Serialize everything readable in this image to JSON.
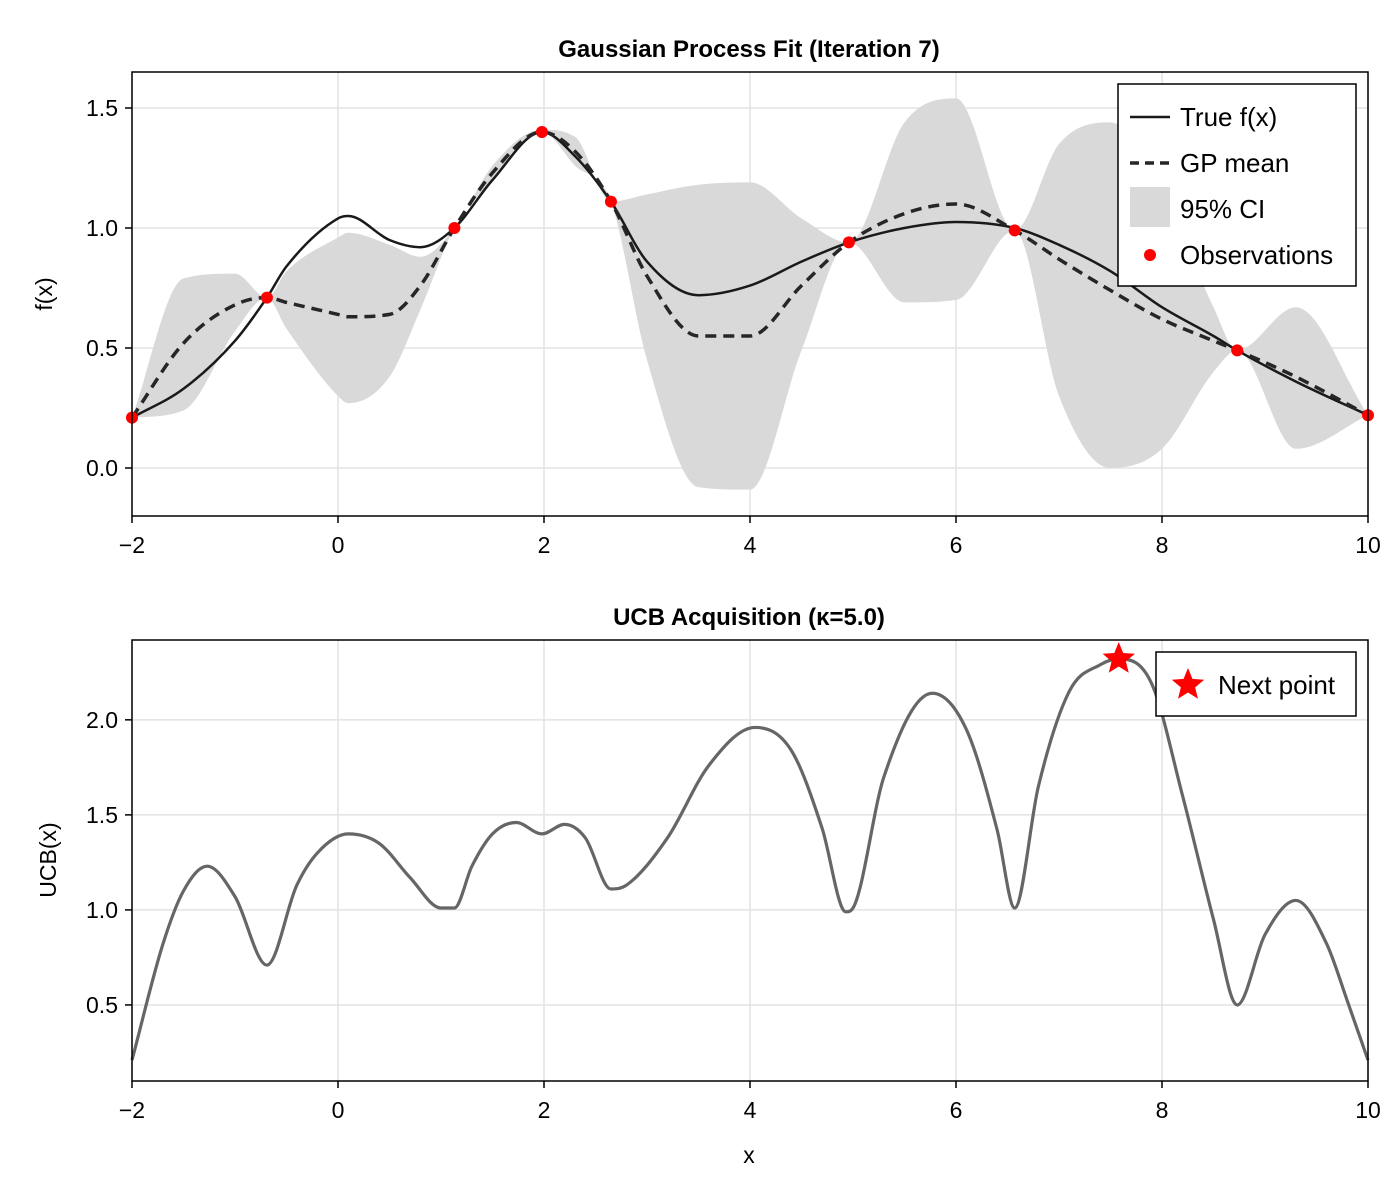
{
  "chart_data": [
    {
      "type": "line",
      "title": "Gaussian Process Fit (Iteration 7)",
      "xlabel": "",
      "ylabel": "f(x)",
      "xlim": [
        -2,
        10
      ],
      "ylim": [
        -0.2,
        1.65
      ],
      "xticks": [
        -2,
        0,
        2,
        4,
        6,
        8,
        10
      ],
      "xtick_labels": [
        "−2",
        "0",
        "2",
        "4",
        "6",
        "8",
        "10"
      ],
      "yticks": [
        0.0,
        0.5,
        1.0,
        1.5
      ],
      "ytick_labels": [
        "0.0",
        "0.5",
        "1.0",
        "1.5"
      ],
      "grid": true,
      "legend_position": "top-right",
      "legend": [
        "True f(x)",
        "GP mean",
        "95% CI",
        "Observations"
      ],
      "x": [
        -2,
        -1.5,
        -1,
        -0.69,
        -0.5,
        0,
        0.1,
        0.5,
        0.8,
        1.13,
        1.5,
        1.98,
        2.3,
        2.65,
        3,
        3.5,
        4,
        4.5,
        4.96,
        5.5,
        6,
        6.57,
        7,
        7.5,
        8,
        8.5,
        8.73,
        9.3,
        10
      ],
      "series": [
        {
          "name": "True f(x)",
          "style": "solid",
          "color": "#1a1a1a",
          "values": [
            0.21,
            0.33,
            0.53,
            0.71,
            0.84,
            1.04,
            1.05,
            0.95,
            0.92,
            1.0,
            1.2,
            1.4,
            1.3,
            1.11,
            0.86,
            0.72,
            0.76,
            0.86,
            0.94,
            1.0,
            1.025,
            1.0,
            0.93,
            0.82,
            0.67,
            0.55,
            0.49,
            0.36,
            0.22
          ]
        },
        {
          "name": "GP mean",
          "style": "dashed",
          "color": "#262626",
          "values": [
            0.21,
            0.52,
            0.68,
            0.71,
            0.69,
            0.64,
            0.63,
            0.64,
            0.76,
            1.0,
            1.23,
            1.4,
            1.32,
            1.11,
            0.8,
            0.55,
            0.55,
            0.76,
            0.94,
            1.06,
            1.1,
            0.99,
            0.87,
            0.74,
            0.62,
            0.53,
            0.49,
            0.38,
            0.22
          ]
        }
      ],
      "ci": {
        "name": "95% CI",
        "color": "#d9d9d9",
        "lower": [
          0.21,
          0.24,
          0.57,
          0.71,
          0.58,
          0.3,
          0.27,
          0.38,
          0.66,
          1.0,
          1.2,
          1.4,
          1.26,
          1.11,
          0.45,
          -0.08,
          -0.09,
          0.49,
          0.94,
          0.69,
          0.7,
          0.99,
          0.3,
          0.0,
          0.08,
          0.4,
          0.49,
          0.08,
          0.22
        ],
        "upper": [
          0.21,
          0.79,
          0.81,
          0.71,
          0.82,
          0.96,
          0.98,
          0.93,
          0.88,
          1.0,
          1.26,
          1.41,
          1.38,
          1.11,
          1.14,
          1.18,
          1.19,
          1.04,
          0.94,
          1.44,
          1.54,
          0.99,
          1.35,
          1.44,
          1.16,
          0.67,
          0.49,
          0.67,
          0.22
        ]
      },
      "observations": {
        "name": "Observations",
        "color": "#ff0000",
        "x": [
          -2,
          -0.69,
          1.13,
          1.98,
          2.65,
          4.96,
          6.57,
          8.73,
          10
        ],
        "y": [
          0.21,
          0.71,
          1.0,
          1.4,
          1.11,
          0.94,
          0.99,
          0.49,
          0.22
        ]
      }
    },
    {
      "type": "line",
      "title": "UCB Acquisition (κ=5.0)",
      "xlabel": "x",
      "ylabel": "UCB(x)",
      "xlim": [
        -2,
        10
      ],
      "ylim": [
        0.1,
        2.42
      ],
      "xticks": [
        -2,
        0,
        2,
        4,
        6,
        8,
        10
      ],
      "xtick_labels": [
        "−2",
        "0",
        "2",
        "4",
        "6",
        "8",
        "10"
      ],
      "yticks": [
        0.5,
        1.0,
        1.5,
        2.0
      ],
      "ytick_labels": [
        "0.5",
        "1.0",
        "1.5",
        "2.0"
      ],
      "grid": true,
      "legend_position": "top-right",
      "legend": [
        "Next point"
      ],
      "series": [
        {
          "name": "UCB",
          "style": "solid",
          "color": "#666666",
          "x": [
            -2,
            -1.7,
            -1.5,
            -1.27,
            -1.0,
            -0.69,
            -0.4,
            -0.2,
            0.1,
            0.4,
            0.7,
            1.0,
            1.13,
            1.3,
            1.5,
            1.73,
            1.98,
            2.2,
            2.4,
            2.65,
            2.8,
            3.2,
            3.6,
            4.05,
            4.4,
            4.7,
            4.93,
            5.0,
            5.3,
            5.77,
            6.1,
            6.4,
            6.57,
            6.8,
            7.1,
            7.4,
            7.58,
            7.9,
            8.2,
            8.5,
            8.73,
            9.0,
            9.3,
            9.6,
            9.8,
            10
          ],
          "values": [
            0.21,
            0.82,
            1.1,
            1.23,
            1.07,
            0.71,
            1.13,
            1.3,
            1.4,
            1.35,
            1.17,
            1.01,
            1.01,
            1.23,
            1.4,
            1.46,
            1.4,
            1.45,
            1.38,
            1.11,
            1.13,
            1.38,
            1.76,
            1.96,
            1.84,
            1.43,
            0.99,
            1.01,
            1.7,
            2.14,
            1.95,
            1.42,
            1.01,
            1.65,
            2.15,
            2.29,
            2.32,
            2.19,
            1.6,
            0.95,
            0.5,
            0.87,
            1.05,
            0.82,
            0.52,
            0.21
          ]
        }
      ],
      "next_point": {
        "name": "Next point",
        "x": 7.58,
        "y": 2.32,
        "color": "#ff0000"
      }
    }
  ]
}
